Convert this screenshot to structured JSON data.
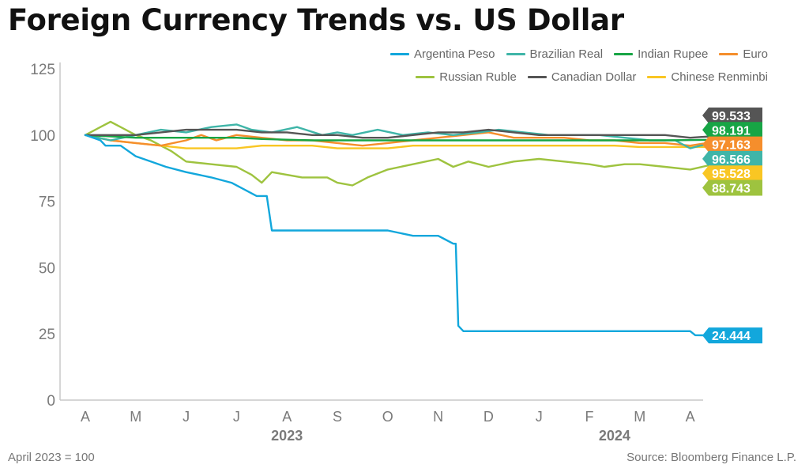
{
  "title": "Foreign Currency Trends vs. US Dollar",
  "footer": {
    "note": "April 2023 = 100",
    "source": "Source: Bloomberg Finance L.P."
  },
  "chart_data": {
    "type": "line",
    "title": "Foreign Currency Trends vs. US Dollar",
    "ylim": [
      0,
      125
    ],
    "yticks": [
      0,
      25,
      50,
      75,
      100,
      125
    ],
    "x_tick_labels": [
      "A",
      "M",
      "J",
      "J",
      "A",
      "S",
      "O",
      "N",
      "D",
      "J",
      "F",
      "M",
      "A"
    ],
    "year_labels": [
      {
        "label": "2023",
        "month_index": 4
      },
      {
        "label": "2024",
        "month_index": 10.5
      }
    ],
    "x_range": [
      0,
      12.6
    ],
    "series": [
      {
        "name": "Argentina Peso",
        "color": "#12a7dc",
        "end_label": "24.444",
        "points": [
          [
            0,
            100
          ],
          [
            0.3,
            98
          ],
          [
            0.4,
            96
          ],
          [
            0.7,
            96
          ],
          [
            1.0,
            92
          ],
          [
            1.3,
            90
          ],
          [
            1.6,
            88
          ],
          [
            2.0,
            86
          ],
          [
            2.5,
            84
          ],
          [
            2.9,
            82
          ],
          [
            3.1,
            80
          ],
          [
            3.4,
            77
          ],
          [
            3.6,
            77
          ],
          [
            3.7,
            64
          ],
          [
            4.0,
            64
          ],
          [
            5.0,
            64
          ],
          [
            6.0,
            64
          ],
          [
            6.5,
            62
          ],
          [
            7.0,
            62
          ],
          [
            7.1,
            61
          ],
          [
            7.3,
            59
          ],
          [
            7.35,
            59
          ],
          [
            7.4,
            28
          ],
          [
            7.5,
            26
          ],
          [
            8.0,
            26
          ],
          [
            9.0,
            26
          ],
          [
            10.0,
            26
          ],
          [
            11.0,
            26
          ],
          [
            12.0,
            26
          ],
          [
            12.1,
            24.5
          ],
          [
            12.4,
            24.4
          ]
        ]
      },
      {
        "name": "Brazilian Real",
        "color": "#3fb5a8",
        "end_label": "96.566",
        "points": [
          [
            0,
            100
          ],
          [
            0.5,
            98
          ],
          [
            1.0,
            100
          ],
          [
            1.5,
            102
          ],
          [
            2.0,
            101
          ],
          [
            2.5,
            103
          ],
          [
            3.0,
            104
          ],
          [
            3.3,
            102
          ],
          [
            3.7,
            101
          ],
          [
            4.2,
            103
          ],
          [
            4.7,
            100
          ],
          [
            5.0,
            101
          ],
          [
            5.3,
            100
          ],
          [
            5.8,
            102
          ],
          [
            6.3,
            100
          ],
          [
            6.8,
            101
          ],
          [
            7.3,
            100
          ],
          [
            7.8,
            101
          ],
          [
            8.2,
            102
          ],
          [
            8.7,
            101
          ],
          [
            9.2,
            100
          ],
          [
            9.7,
            100
          ],
          [
            10.2,
            100
          ],
          [
            10.7,
            99
          ],
          [
            11.2,
            98
          ],
          [
            11.7,
            98
          ],
          [
            12.0,
            95
          ],
          [
            12.2,
            96
          ],
          [
            12.4,
            96.6
          ]
        ]
      },
      {
        "name": "Indian Rupee",
        "color": "#17a545",
        "end_label": "98.191",
        "points": [
          [
            0,
            100
          ],
          [
            1.0,
            99
          ],
          [
            2.0,
            99
          ],
          [
            2.5,
            99
          ],
          [
            3.0,
            99
          ],
          [
            3.5,
            98.5
          ],
          [
            4.5,
            98
          ],
          [
            5.5,
            98
          ],
          [
            6.5,
            98
          ],
          [
            7.5,
            98
          ],
          [
            8.5,
            98
          ],
          [
            9.5,
            98
          ],
          [
            10.5,
            98
          ],
          [
            11.5,
            98
          ],
          [
            12.4,
            98.2
          ]
        ]
      },
      {
        "name": "Euro",
        "color": "#f58e2c",
        "end_label": "97.163",
        "points": [
          [
            0,
            100
          ],
          [
            0.5,
            98
          ],
          [
            1.0,
            97
          ],
          [
            1.5,
            96
          ],
          [
            2.0,
            98
          ],
          [
            2.3,
            100
          ],
          [
            2.6,
            98
          ],
          [
            3.0,
            100
          ],
          [
            3.5,
            99
          ],
          [
            4.0,
            98
          ],
          [
            4.5,
            98
          ],
          [
            5.0,
            97
          ],
          [
            5.5,
            96
          ],
          [
            6.0,
            97
          ],
          [
            6.5,
            98
          ],
          [
            7.0,
            99
          ],
          [
            7.5,
            100
          ],
          [
            8.0,
            101
          ],
          [
            8.5,
            99
          ],
          [
            9.0,
            99
          ],
          [
            9.5,
            99
          ],
          [
            10.0,
            98
          ],
          [
            10.5,
            98
          ],
          [
            11.0,
            97
          ],
          [
            11.5,
            97
          ],
          [
            12.0,
            96
          ],
          [
            12.4,
            97.2
          ]
        ]
      },
      {
        "name": "Russian Ruble",
        "color": "#9ec33f",
        "end_label": "88.743",
        "points": [
          [
            0,
            100
          ],
          [
            0.3,
            103
          ],
          [
            0.5,
            105
          ],
          [
            0.7,
            103
          ],
          [
            1.0,
            100
          ],
          [
            1.3,
            98
          ],
          [
            1.7,
            94
          ],
          [
            2.0,
            90
          ],
          [
            2.5,
            89
          ],
          [
            3.0,
            88
          ],
          [
            3.3,
            85
          ],
          [
            3.5,
            82
          ],
          [
            3.7,
            86
          ],
          [
            4.0,
            85
          ],
          [
            4.3,
            84
          ],
          [
            4.8,
            84
          ],
          [
            5.0,
            82
          ],
          [
            5.3,
            81
          ],
          [
            5.6,
            84
          ],
          [
            6.0,
            87
          ],
          [
            6.5,
            89
          ],
          [
            7.0,
            91
          ],
          [
            7.3,
            88
          ],
          [
            7.6,
            90
          ],
          [
            8.0,
            88
          ],
          [
            8.5,
            90
          ],
          [
            9.0,
            91
          ],
          [
            9.5,
            90
          ],
          [
            10.0,
            89
          ],
          [
            10.3,
            88
          ],
          [
            10.7,
            89
          ],
          [
            11.0,
            89
          ],
          [
            11.5,
            88
          ],
          [
            12.0,
            87
          ],
          [
            12.4,
            88.7
          ]
        ]
      },
      {
        "name": "Canadian Dollar",
        "color": "#555555",
        "end_label": "99.533",
        "points": [
          [
            0,
            100
          ],
          [
            0.5,
            100
          ],
          [
            1.0,
            100
          ],
          [
            1.5,
            101
          ],
          [
            2.0,
            102
          ],
          [
            2.5,
            102
          ],
          [
            3.0,
            102
          ],
          [
            3.5,
            101
          ],
          [
            4.0,
            101
          ],
          [
            4.5,
            100
          ],
          [
            5.0,
            100
          ],
          [
            5.5,
            99
          ],
          [
            6.0,
            99
          ],
          [
            6.5,
            100
          ],
          [
            7.0,
            101
          ],
          [
            7.5,
            101
          ],
          [
            8.0,
            102
          ],
          [
            8.5,
            101
          ],
          [
            9.0,
            100
          ],
          [
            9.5,
            100
          ],
          [
            10.0,
            100
          ],
          [
            10.5,
            100
          ],
          [
            11.0,
            100
          ],
          [
            11.5,
            100
          ],
          [
            12.0,
            99
          ],
          [
            12.4,
            99.5
          ]
        ]
      },
      {
        "name": "Chinese Renminbi",
        "color": "#f9c623",
        "end_label": "95.528",
        "points": [
          [
            0,
            100
          ],
          [
            0.5,
            98
          ],
          [
            1.0,
            97
          ],
          [
            1.5,
            96
          ],
          [
            2.0,
            95
          ],
          [
            2.5,
            95
          ],
          [
            3.0,
            95
          ],
          [
            3.5,
            96
          ],
          [
            4.0,
            96
          ],
          [
            4.5,
            96
          ],
          [
            5.0,
            95
          ],
          [
            5.5,
            95
          ],
          [
            6.0,
            95
          ],
          [
            6.5,
            96
          ],
          [
            7.0,
            96
          ],
          [
            7.5,
            96
          ],
          [
            8.0,
            96
          ],
          [
            8.5,
            96
          ],
          [
            9.0,
            96
          ],
          [
            9.5,
            96
          ],
          [
            10.0,
            96
          ],
          [
            10.5,
            96
          ],
          [
            11.0,
            95.5
          ],
          [
            11.5,
            95.5
          ],
          [
            12.0,
            95.5
          ],
          [
            12.4,
            95.5
          ]
        ]
      }
    ],
    "end_labels_order": [
      "Canadian Dollar",
      "Indian Rupee",
      "Euro",
      "Brazilian Real",
      "Chinese Renminbi",
      "Russian Ruble",
      "Argentina Peso"
    ]
  }
}
